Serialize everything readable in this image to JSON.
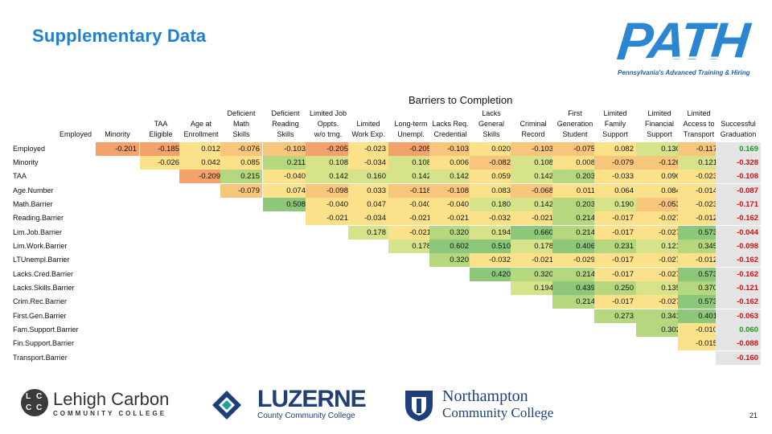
{
  "title": "Supplementary Data",
  "logo": {
    "word": "PATH",
    "tagline": "Pennsylvania's Advanced Training & Hiring"
  },
  "barriers_title": "Barriers to Completion",
  "columns": [
    {
      "label": "Employed"
    },
    {
      "label": "Minority"
    },
    {
      "label": "TAA\nEligible"
    },
    {
      "label": "Age at\nEnrollment"
    },
    {
      "label": "Deficient\nMath\nSkills"
    },
    {
      "label": "Deficient\nReading\nSkills"
    },
    {
      "label": "Limited Job\nOppts.\nw/o trng."
    },
    {
      "label": "Limited\nWork Exp."
    },
    {
      "label": "Long-term\nUnempl."
    },
    {
      "label": "Lacks Req.\nCredential"
    },
    {
      "label": "Lacks\nGeneral\nSkills"
    },
    {
      "label": "Criminal\nRecord"
    },
    {
      "label": "First\nGeneration\nStudent"
    },
    {
      "label": "Limited\nFamily\nSupport"
    },
    {
      "label": "Limited\nFinancial\nSupport"
    },
    {
      "label": "Limited\nAccess to\nTransport"
    },
    {
      "label": "Successful\nGraduation"
    }
  ],
  "rows": [
    {
      "label": "Employed",
      "values": [
        null,
        "-0.201",
        "-0.185",
        "0.012",
        "-0.076",
        "-0.103",
        "-0.205",
        "-0.023",
        "-0.205",
        "-0.103",
        "0.020",
        "-0.103",
        "-0.075",
        "0.082",
        "0.130",
        "-0.117",
        "0.169"
      ]
    },
    {
      "label": "Minority",
      "values": [
        null,
        null,
        "-0.026",
        "0.042",
        "0.085",
        "0.211",
        "0.108",
        "-0.034",
        "0.108",
        "0.006",
        "-0.082",
        "0.108",
        "0.008",
        "-0.079",
        "-0.126",
        "0.121",
        "-0.328"
      ]
    },
    {
      "label": "TAA",
      "values": [
        null,
        null,
        null,
        "-0.209",
        "0.215",
        "-0.040",
        "0.142",
        "0.160",
        "0.142",
        "0.142",
        "0.059",
        "0.142",
        "0.203",
        "-0.033",
        "0.090",
        "-0.023",
        "-0.108"
      ]
    },
    {
      "label": "Age.Number",
      "values": [
        null,
        null,
        null,
        null,
        "-0.079",
        "0.074",
        "-0.098",
        "0.033",
        "-0.118",
        "-0.108",
        "0.083",
        "-0.068",
        "0.011",
        "0.064",
        "0.084",
        "-0.014",
        "-0.087"
      ]
    },
    {
      "label": "Math.Barrier",
      "values": [
        null,
        null,
        null,
        null,
        null,
        "0.508",
        "-0.040",
        "0.047",
        "-0.040",
        "-0.040",
        "0.180",
        "0.142",
        "0.203",
        "0.190",
        "-0.053",
        "-0.023",
        "-0.171"
      ]
    },
    {
      "label": "Reading.Barrier",
      "values": [
        null,
        null,
        null,
        null,
        null,
        null,
        "-0.021",
        "-0.034",
        "-0.021",
        "-0.021",
        "-0.032",
        "-0.021",
        "0.214",
        "-0.017",
        "-0.027",
        "-0.012",
        "-0.162"
      ]
    },
    {
      "label": "Lim.Job.Barrier",
      "values": [
        null,
        null,
        null,
        null,
        null,
        null,
        null,
        "0.178",
        "-0.021",
        "0.320",
        "0.194",
        "0.660",
        "0.214",
        "-0.017",
        "-0.027",
        "0.573",
        "-0.044"
      ]
    },
    {
      "label": "Lim.Work.Barrier",
      "values": [
        null,
        null,
        null,
        null,
        null,
        null,
        null,
        null,
        "0.178",
        "0.602",
        "0.510",
        "0.178",
        "0.406",
        "0.231",
        "0.121",
        "0.345",
        "-0.098"
      ]
    },
    {
      "label": "LTUnempl.Barrier",
      "values": [
        null,
        null,
        null,
        null,
        null,
        null,
        null,
        null,
        null,
        "0.320",
        "-0.032",
        "-0.021",
        "-0.029",
        "-0.017",
        "-0.027",
        "-0.012",
        "-0.162"
      ]
    },
    {
      "label": "Lacks.Cred.Barrier",
      "values": [
        null,
        null,
        null,
        null,
        null,
        null,
        null,
        null,
        null,
        null,
        "0.420",
        "0.320",
        "0.214",
        "-0.017",
        "-0.027",
        "0.573",
        "-0.162"
      ]
    },
    {
      "label": "Lacks.Skills.Barrier",
      "values": [
        null,
        null,
        null,
        null,
        null,
        null,
        null,
        null,
        null,
        null,
        null,
        "0.194",
        "0.439",
        "0.250",
        "0.135",
        "0.370",
        "-0.121"
      ]
    },
    {
      "label": "Crim.Rec.Barrier",
      "values": [
        null,
        null,
        null,
        null,
        null,
        null,
        null,
        null,
        null,
        null,
        null,
        null,
        "0.214",
        "-0.017",
        "-0.027",
        "0.573",
        "-0.162"
      ]
    },
    {
      "label": "First.Gen.Barrier",
      "values": [
        null,
        null,
        null,
        null,
        null,
        null,
        null,
        null,
        null,
        null,
        null,
        null,
        null,
        "0.273",
        "0.341",
        "0.401",
        "-0.063"
      ]
    },
    {
      "label": "Fam.Support.Barrier",
      "values": [
        null,
        null,
        null,
        null,
        null,
        null,
        null,
        null,
        null,
        null,
        null,
        null,
        null,
        null,
        "0.302",
        "-0.010",
        "0.060"
      ]
    },
    {
      "label": "Fin.Support.Barrier",
      "values": [
        null,
        null,
        null,
        null,
        null,
        null,
        null,
        null,
        null,
        null,
        null,
        null,
        null,
        null,
        null,
        "-0.015",
        "-0.088"
      ]
    },
    {
      "label": "Transport.Barrier",
      "values": [
        null,
        null,
        null,
        null,
        null,
        null,
        null,
        null,
        null,
        null,
        null,
        null,
        null,
        null,
        null,
        null,
        "-0.160"
      ]
    }
  ],
  "colors": {
    "title": "#1f7fd0",
    "neg_strong": "#f4a26b",
    "neg_mid": "#f8c57c",
    "neutral": "#fbe28a",
    "pos_light": "#d6e38a",
    "pos_mid": "#b5d77e",
    "pos_strong": "#8cc77a",
    "graduation_bg": "#e4e4e4",
    "grad_pos_text": "#1a9a1a",
    "grad_neg_text": "#d01010"
  },
  "footer": {
    "lehigh": {
      "name": "Lehigh Carbon",
      "sub": "COMMUNITY COLLEGE",
      "badge": "LCCC"
    },
    "luzerne": {
      "name": "LUZERNE",
      "sub": "County Community College"
    },
    "northampton": {
      "name": "Northampton",
      "sub": "Community College"
    }
  },
  "page_number": "21"
}
